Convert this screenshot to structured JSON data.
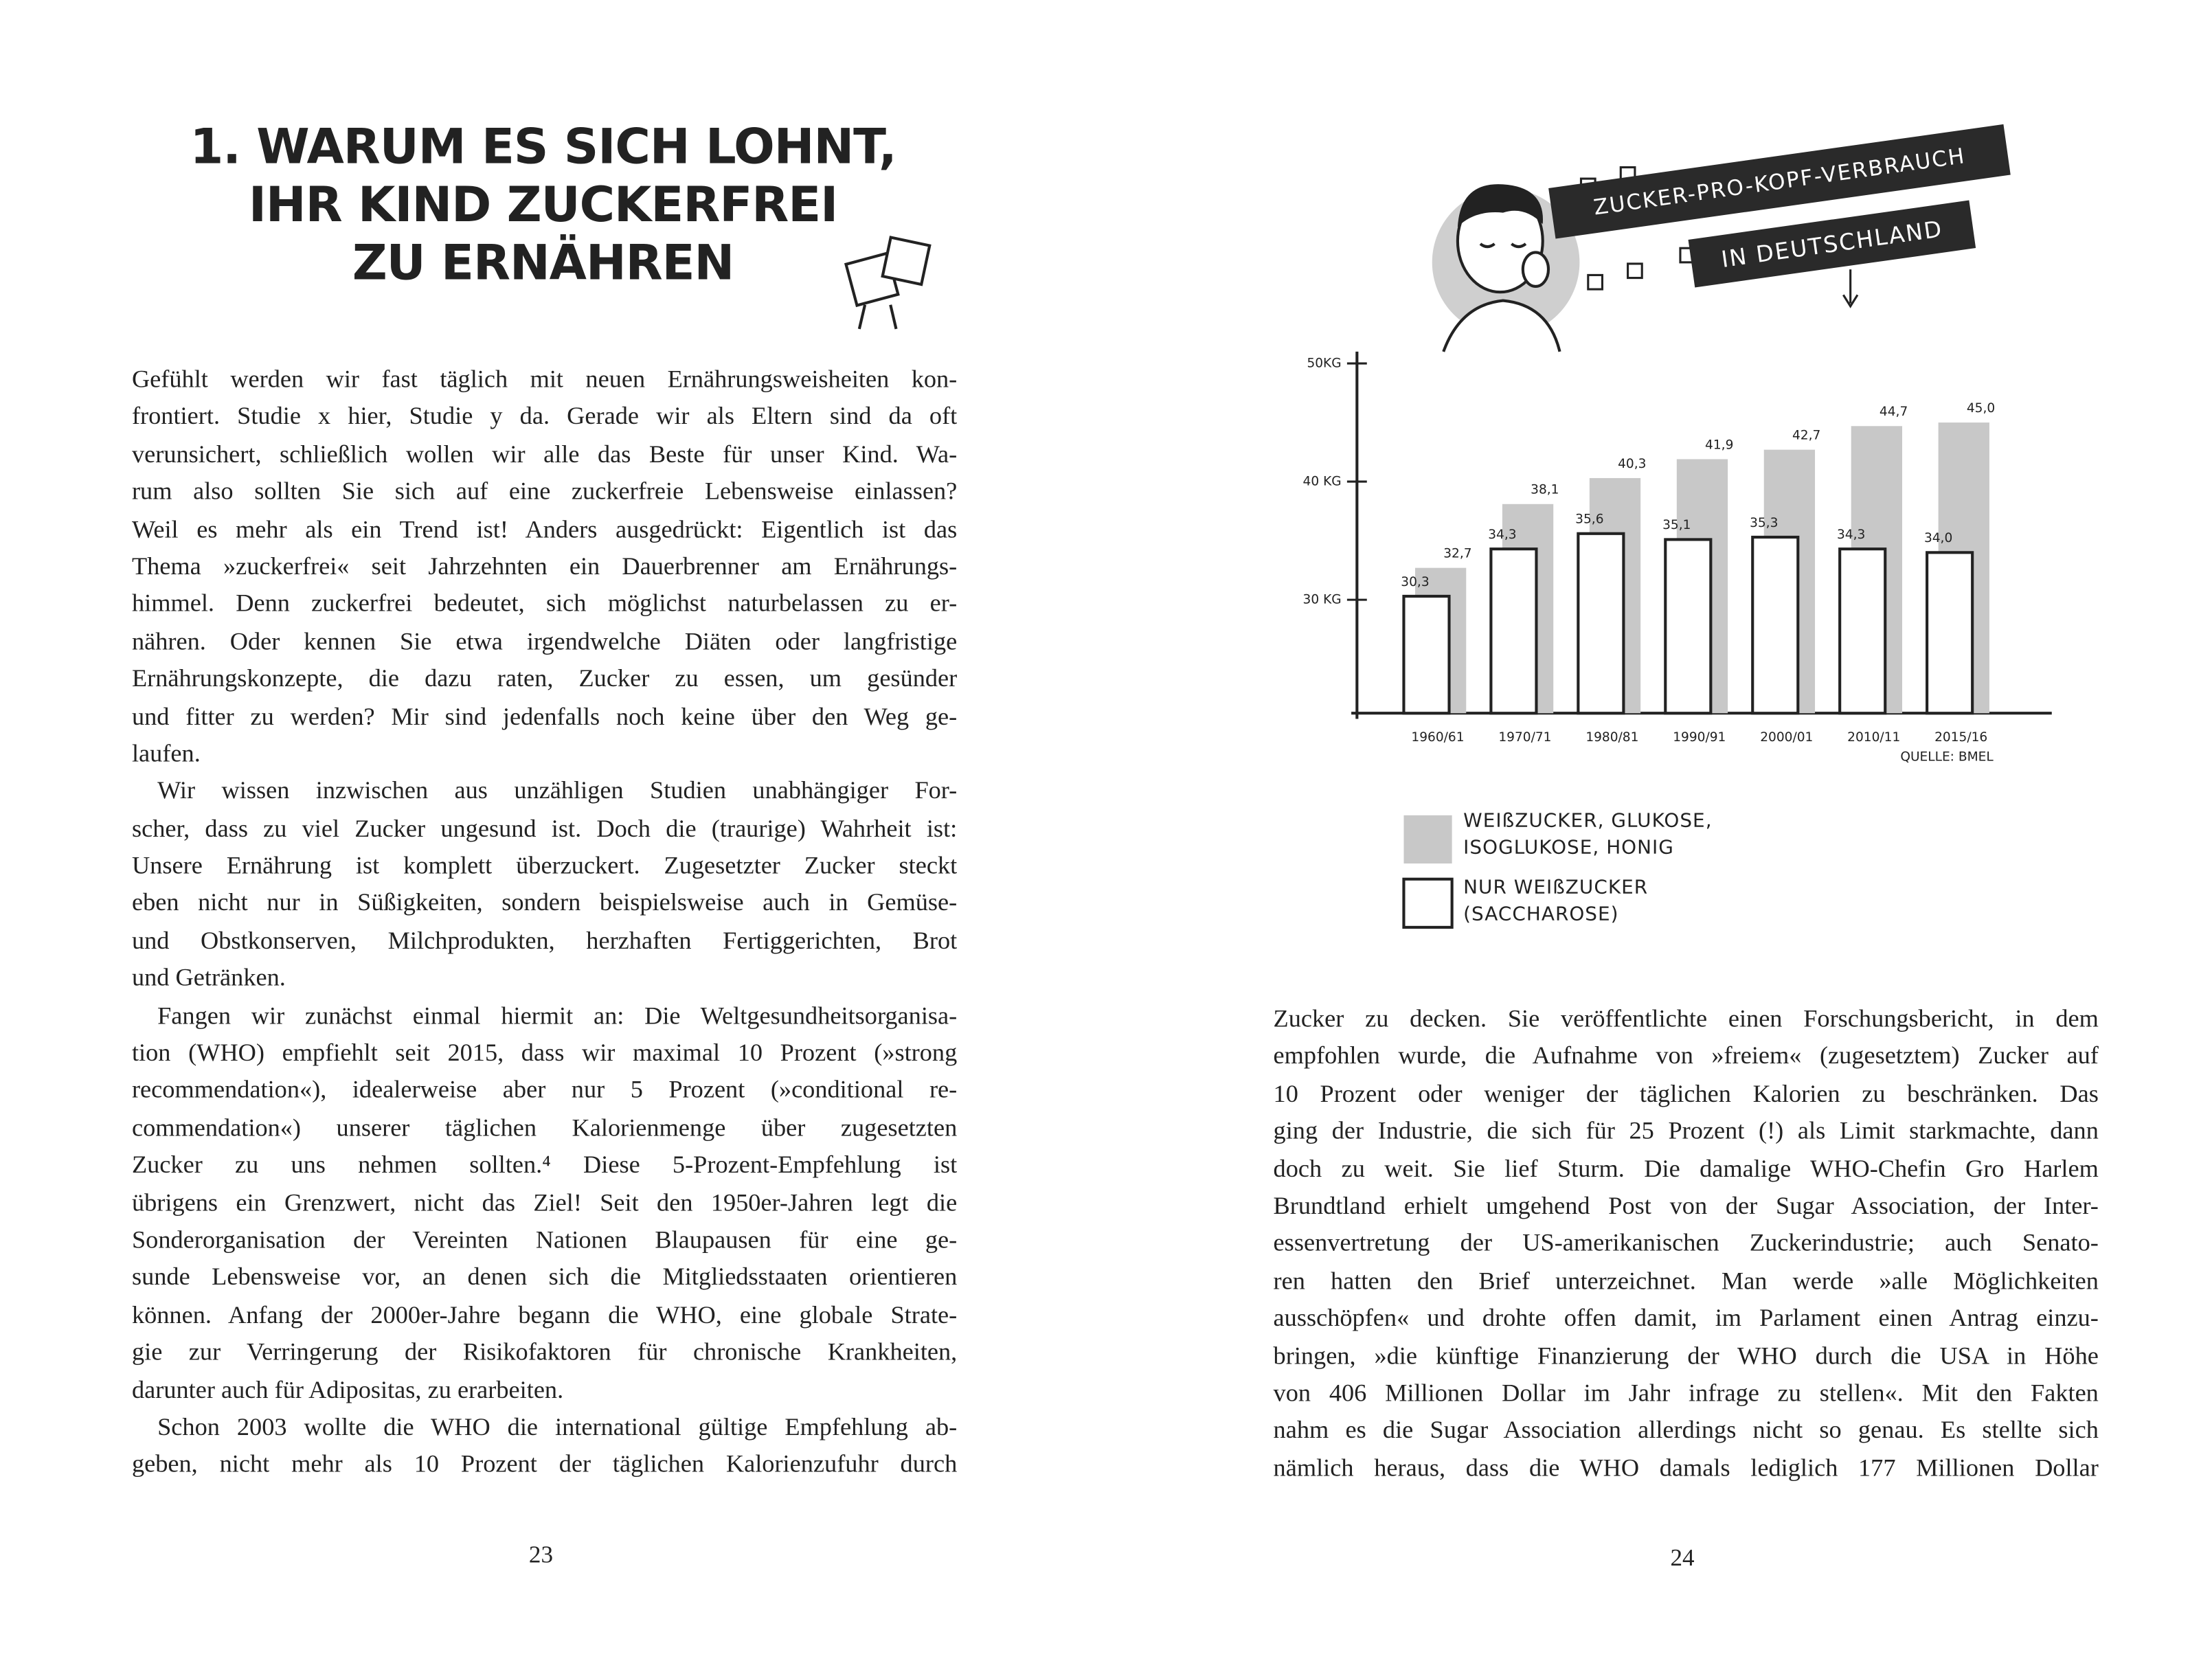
{
  "left_page": {
    "heading": [
      "1. WARUM ES SICH LOHNT,",
      "IHR KIND ZUCKERFREI",
      "ZU ERNÄHREN"
    ],
    "paragraphs": [
      [
        "Gefühlt werden wir fast täglich mit neuen Ernährungsweisheiten kon-",
        "frontiert. Studie x hier, Studie y da. Gerade wir als Eltern sind da oft",
        "verunsichert, schließlich wollen wir alle das Beste für unser Kind. Wa-",
        "rum also sollten Sie sich auf eine zuckerfreie Lebensweise einlassen?",
        "Weil es mehr als ein Trend ist! Anders ausgedrückt: Eigentlich ist das",
        "Thema »zuckerfrei« seit Jahrzehnten ein Dauerbrenner am Ernährungs-",
        "himmel. Denn zuckerfrei bedeutet, sich möglichst naturbelassen zu er-",
        "nähren. Oder kennen Sie etwa irgendwelche Diäten oder langfristige",
        "Ernährungskonzepte, die dazu raten, Zucker zu essen, um gesünder",
        "und fitter zu werden? Mir sind jedenfalls noch keine über den Weg ge-",
        "laufen."
      ],
      [
        "Wir wissen inzwischen aus unzähligen Studien unabhängiger For-",
        "scher, dass zu viel Zucker ungesund ist. Doch die (traurige) Wahrheit ist:",
        "Unsere Ernährung ist komplett überzuckert. Zugesetzter Zucker steckt",
        "eben nicht nur in Süßigkeiten, sondern beispielsweise auch in Gemüse-",
        "und Obstkonserven, Milchprodukten, herzhaften Fertiggerichten, Brot",
        "und Getränken."
      ],
      [
        "Fangen wir zunächst einmal hiermit an: Die Weltgesundheitsorganisa-",
        "tion (WHO) empfiehlt seit 2015, dass wir maximal 10 Prozent (»strong",
        "recommendation«), idealerweise aber nur 5 Prozent (»conditional re-",
        "commendation«) unserer täglichen Kalorienmenge über zugesetzten",
        "Zucker zu uns nehmen sollten.⁴ Diese 5-Prozent-Empfehlung ist",
        "übrigens ein Grenzwert, nicht das Ziel! Seit den 1950er-Jahren legt die",
        "Sonderorganisation der Vereinten Nationen Blaupausen für eine ge-",
        "sunde Lebensweise vor, an denen sich die Mitgliedsstaaten orientieren",
        "können. Anfang der 2000er-Jahre begann die WHO, eine globale Strate-",
        "gie zur Verringerung der Risikofaktoren für chronische Krankheiten,",
        "darunter auch für Adipositas, zu erarbeiten."
      ],
      [
        "Schon 2003 wollte die WHO die international gültige Empfehlung ab-",
        "geben, nicht mehr als 10 Prozent der täglichen Kalorienzufuhr durch"
      ]
    ],
    "page_number": "23"
  },
  "right_page": {
    "paragraphs": [
      [
        "Zucker zu decken. Sie veröffentlichte einen Forschungsbericht, in dem",
        "empfohlen wurde, die Aufnahme von »freiem« (zugesetztem) Zucker auf",
        "10 Prozent oder weniger der täglichen Kalorien zu beschränken. Das",
        "ging der Industrie, die sich für 25 Prozent (!) als Limit starkmachte, dann",
        "doch zu weit. Sie lief Sturm. Die damalige WHO-Chefin Gro Harlem",
        "Brundtland erhielt umgehend Post von der Sugar Association, der Inter-",
        "essenvertretung der US-amerikanischen Zuckerindustrie; auch Senato-",
        "ren hatten den Brief unterzeichnet. Man werde »alle Möglichkeiten",
        "ausschöpfen« und drohte offen damit, im Parlament einen Antrag einzu-",
        "bringen, »die künftige Finanzierung der WHO durch die USA in Höhe",
        "von 406 Millionen Dollar im Jahr infrage zu stellen«. Mit den Fakten",
        "nahm es die Sugar Association allerdings nicht so genau. Es stellte sich",
        "nämlich heraus, dass die WHO damals lediglich 177 Millionen Dollar"
      ]
    ],
    "page_number": "24"
  },
  "chart_data": {
    "type": "bar",
    "title": "ZUCKER-PRO-KOPF-VERBRAUCH",
    "subtitle": "IN DEUTSCHLAND",
    "source": "QUELLE: BMEL",
    "categories": [
      "1960/61",
      "1970/71",
      "1980/81",
      "1990/91",
      "2000/01",
      "2010/11",
      "2015/16"
    ],
    "series": [
      {
        "name": "WEIßZUCKER, GLUKOSE, ISOGLUKOSE, HONIG",
        "color": "#c8c8c8",
        "values": [
          32.7,
          38.1,
          40.3,
          41.9,
          42.7,
          44.7,
          45.0
        ],
        "value_labels": [
          "32,7",
          "38,1",
          "40,3",
          "41,9",
          "42,7",
          "44,7",
          "45,0"
        ]
      },
      {
        "name": "NUR WEIßZUCKER (SACCHAROSE)",
        "color": "#ffffff",
        "values": [
          30.3,
          34.3,
          35.6,
          35.1,
          35.3,
          34.3,
          34.0
        ],
        "value_labels": [
          "30,3",
          "34,3",
          "35,6",
          "35,1",
          "35,3",
          "34,3",
          "34,0"
        ]
      }
    ],
    "ylim": [
      20.4,
      51
    ],
    "yticks": [
      {
        "value": 30,
        "label": "30 KG"
      },
      {
        "value": 40,
        "label": "40 KG"
      },
      {
        "value": 50,
        "label": "50KG"
      }
    ]
  }
}
